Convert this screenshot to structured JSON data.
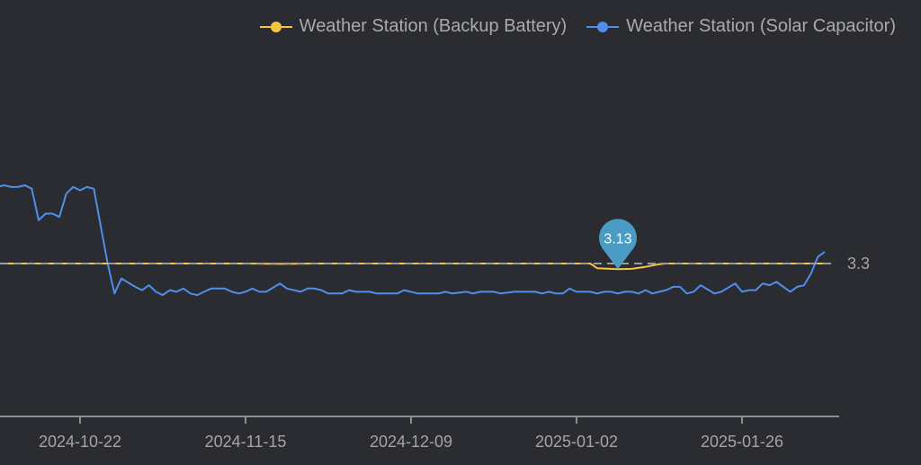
{
  "legend": {
    "items": [
      {
        "label": "Weather Station (Backup Battery)",
        "color": "#f5c542"
      },
      {
        "label": "Weather Station (Solar Capacitor)",
        "color": "#4f8fe8"
      }
    ]
  },
  "reference_line": {
    "value": 3.3,
    "label": "3.3"
  },
  "marker": {
    "label": "3.13",
    "color": "#4a9cc4"
  },
  "x_axis": {
    "ticks": [
      "2024-10-22",
      "2024-11-15",
      "2024-12-09",
      "2025-01-02",
      "2025-01-26"
    ]
  },
  "chart_data": {
    "type": "line",
    "title": "",
    "xlabel": "",
    "ylabel": "",
    "x_ticks": [
      "2024-10-22",
      "2024-11-15",
      "2024-12-09",
      "2025-01-02",
      "2025-01-26"
    ],
    "x_range": [
      "2024-10-10",
      "2025-02-08"
    ],
    "reference_lines": [
      {
        "axis": "y",
        "value": 3.3,
        "label": "3.3",
        "style": "dashed"
      }
    ],
    "annotations": [
      {
        "type": "pin",
        "series": "Weather Station (Backup Battery)",
        "x": "2025-01-08",
        "value": 3.13,
        "label": "3.13"
      }
    ],
    "grid": false,
    "legend_position": "top-right",
    "series": [
      {
        "name": "Weather Station (Backup Battery)",
        "color": "#f5c542",
        "x_step_days": 1,
        "x_start": "2024-10-10",
        "values_summary": "approximately constant at 3.3 V with a brief dip to 3.13 V around 2025-01-05 to 2025-01-12",
        "points": [
          [
            "2024-10-10",
            3.3
          ],
          [
            "2024-11-15",
            3.3
          ],
          [
            "2024-11-20",
            3.29
          ],
          [
            "2024-11-25",
            3.3
          ],
          [
            "2025-01-02",
            3.3
          ],
          [
            "2025-01-04",
            3.3
          ],
          [
            "2025-01-05",
            3.16
          ],
          [
            "2025-01-08",
            3.13
          ],
          [
            "2025-01-10",
            3.14
          ],
          [
            "2025-01-12",
            3.2
          ],
          [
            "2025-01-14",
            3.28
          ],
          [
            "2025-01-15",
            3.3
          ],
          [
            "2025-02-07",
            3.3
          ]
        ]
      },
      {
        "name": "Weather Station (Solar Capacitor)",
        "color": "#4f8fe8",
        "points": [
          [
            "2024-10-10",
            5.6
          ],
          [
            "2024-10-11",
            5.65
          ],
          [
            "2024-10-12",
            5.6
          ],
          [
            "2024-10-13",
            5.6
          ],
          [
            "2024-10-14",
            5.65
          ],
          [
            "2024-10-15",
            5.55
          ],
          [
            "2024-10-16",
            4.6
          ],
          [
            "2024-10-17",
            4.8
          ],
          [
            "2024-10-18",
            4.8
          ],
          [
            "2024-10-19",
            4.7
          ],
          [
            "2024-10-20",
            5.4
          ],
          [
            "2024-10-21",
            5.6
          ],
          [
            "2024-10-22",
            5.5
          ],
          [
            "2024-10-23",
            5.6
          ],
          [
            "2024-10-24",
            5.55
          ],
          [
            "2024-10-26",
            3.3
          ],
          [
            "2024-10-27",
            2.4
          ],
          [
            "2024-10-28",
            2.85
          ],
          [
            "2024-10-30",
            2.6
          ],
          [
            "2024-10-31",
            2.5
          ],
          [
            "2024-11-01",
            2.65
          ],
          [
            "2024-11-02",
            2.45
          ],
          [
            "2024-11-03",
            2.35
          ],
          [
            "2024-11-04",
            2.5
          ],
          [
            "2024-11-05",
            2.45
          ],
          [
            "2024-11-06",
            2.55
          ],
          [
            "2024-11-07",
            2.4
          ],
          [
            "2024-11-08",
            2.35
          ],
          [
            "2024-11-09",
            2.45
          ],
          [
            "2024-11-10",
            2.55
          ],
          [
            "2024-11-12",
            2.55
          ],
          [
            "2024-11-13",
            2.45
          ],
          [
            "2024-11-14",
            2.4
          ],
          [
            "2024-11-15",
            2.45
          ],
          [
            "2024-11-16",
            2.55
          ],
          [
            "2024-11-17",
            2.45
          ],
          [
            "2024-11-18",
            2.45
          ],
          [
            "2024-11-20",
            2.7
          ],
          [
            "2024-11-21",
            2.55
          ],
          [
            "2024-11-23",
            2.45
          ],
          [
            "2024-11-24",
            2.55
          ],
          [
            "2024-11-25",
            2.55
          ],
          [
            "2024-11-26",
            2.5
          ],
          [
            "2024-11-27",
            2.4
          ],
          [
            "2024-11-29",
            2.4
          ],
          [
            "2024-11-30",
            2.5
          ],
          [
            "2024-12-01",
            2.45
          ],
          [
            "2024-12-03",
            2.45
          ],
          [
            "2024-12-04",
            2.4
          ],
          [
            "2024-12-07",
            2.4
          ],
          [
            "2024-12-08",
            2.5
          ],
          [
            "2024-12-10",
            2.4
          ],
          [
            "2024-12-13",
            2.4
          ],
          [
            "2024-12-14",
            2.45
          ],
          [
            "2024-12-15",
            2.4
          ],
          [
            "2024-12-17",
            2.45
          ],
          [
            "2024-12-18",
            2.4
          ],
          [
            "2024-12-19",
            2.45
          ],
          [
            "2024-12-21",
            2.45
          ],
          [
            "2024-12-22",
            2.4
          ],
          [
            "2024-12-24",
            2.45
          ],
          [
            "2024-12-27",
            2.45
          ],
          [
            "2024-12-28",
            2.4
          ],
          [
            "2024-12-29",
            2.45
          ],
          [
            "2024-12-30",
            2.4
          ],
          [
            "2024-12-31",
            2.4
          ],
          [
            "2025-01-01",
            2.55
          ],
          [
            "2025-01-02",
            2.45
          ],
          [
            "2025-01-04",
            2.45
          ],
          [
            "2025-01-05",
            2.4
          ],
          [
            "2025-01-06",
            2.45
          ],
          [
            "2025-01-07",
            2.45
          ],
          [
            "2025-01-08",
            2.4
          ],
          [
            "2025-01-09",
            2.45
          ],
          [
            "2025-01-10",
            2.45
          ],
          [
            "2025-01-11",
            2.4
          ],
          [
            "2025-01-12",
            2.5
          ],
          [
            "2025-01-13",
            2.4
          ],
          [
            "2025-01-14",
            2.45
          ],
          [
            "2025-01-15",
            2.5
          ],
          [
            "2025-01-16",
            2.6
          ],
          [
            "2025-01-17",
            2.6
          ],
          [
            "2025-01-18",
            2.4
          ],
          [
            "2025-01-19",
            2.45
          ],
          [
            "2025-01-20",
            2.65
          ],
          [
            "2025-01-22",
            2.4
          ],
          [
            "2025-01-23",
            2.45
          ],
          [
            "2025-01-25",
            2.7
          ],
          [
            "2025-01-26",
            2.45
          ],
          [
            "2025-01-27",
            2.5
          ],
          [
            "2025-01-28",
            2.5
          ],
          [
            "2025-01-29",
            2.7
          ],
          [
            "2025-01-30",
            2.65
          ],
          [
            "2025-01-31",
            2.75
          ],
          [
            "2025-02-01",
            2.6
          ],
          [
            "2025-02-02",
            2.45
          ],
          [
            "2025-02-03",
            2.6
          ],
          [
            "2025-02-04",
            2.65
          ],
          [
            "2025-02-05",
            3.0
          ],
          [
            "2025-02-06",
            3.5
          ],
          [
            "2025-02-07",
            3.65
          ]
        ]
      }
    ]
  }
}
